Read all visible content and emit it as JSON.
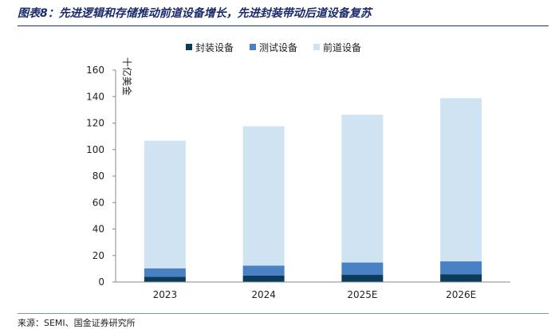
{
  "figure": {
    "title": "图表8：先进逻辑和存储推动前道设备增长，先进封装带动后道设备复苏",
    "source": "来源：SEMI、国金证券研究所"
  },
  "chart_data": {
    "type": "bar",
    "stacked": true,
    "categories": [
      "2023",
      "2024",
      "2025E",
      "2026E"
    ],
    "series": [
      {
        "name": "封装设备",
        "color": "#0b3b5c",
        "values": [
          4.0,
          4.9,
          5.4,
          5.9
        ]
      },
      {
        "name": "测试设备",
        "color": "#4a80c4",
        "values": [
          6.3,
          7.5,
          9.3,
          9.7
        ]
      },
      {
        "name": "前道设备",
        "color": "#cfe3f2",
        "values": [
          96.4,
          105.2,
          111.6,
          123.2
        ]
      }
    ],
    "ylim": [
      0,
      160
    ],
    "yticks": [
      0,
      20,
      40,
      60,
      80,
      100,
      120,
      140,
      160
    ],
    "unit_label": "十亿美金",
    "legend": "top-center",
    "grid": false
  }
}
